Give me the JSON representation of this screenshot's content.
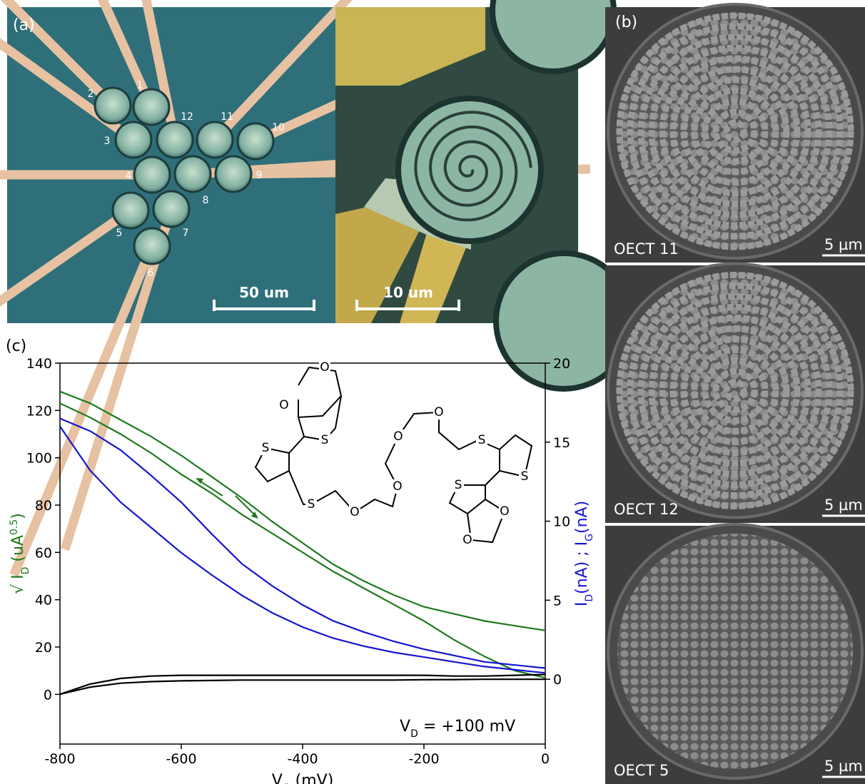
{
  "panel_a": {
    "label": "(a)",
    "devices": [
      "1",
      "2",
      "3",
      "12",
      "11",
      "10",
      "4",
      "8",
      "9",
      "5",
      "7",
      "6"
    ],
    "scale_bars": [
      "50 um",
      "10 um"
    ]
  },
  "panel_b": {
    "label": "(b)",
    "images": [
      {
        "caption": "OECT 11",
        "scale": "5 µm"
      },
      {
        "caption": "OECT 12",
        "scale": "5 µm"
      },
      {
        "caption": "OECT 5",
        "scale": "5 µm"
      }
    ]
  },
  "panel_c": {
    "label": "(c)",
    "molecule_atoms": [
      "O",
      "O",
      "S",
      "S",
      "S",
      "O",
      "O",
      "O",
      "O",
      "S",
      "S",
      "S",
      "O",
      "O"
    ]
  },
  "chart_data": {
    "type": "line",
    "x": [
      -800,
      -750,
      -700,
      -650,
      -600,
      -550,
      -500,
      -450,
      -400,
      -350,
      -300,
      -250,
      -200,
      -150,
      -100,
      -50,
      0
    ],
    "xlim": [
      -800,
      0
    ],
    "xticks": [
      -800,
      -600,
      -400,
      -200,
      0
    ],
    "ylim": [
      -21,
      140
    ],
    "yticks": [
      0,
      20,
      40,
      60,
      80,
      100,
      120,
      140
    ],
    "y2lim": [
      -4.1,
      20
    ],
    "y2ticks": [
      0,
      5,
      10,
      15,
      20
    ],
    "x_label": [
      "V",
      "G",
      " (mV)"
    ],
    "y_label": [
      "√ I",
      "D",
      " (uA",
      "0.5",
      ")"
    ],
    "y2_label": [
      "I",
      "D",
      "(nA) ; I",
      "G",
      "(nA)"
    ],
    "annotation": [
      "V",
      "D",
      " = +100 mV"
    ],
    "series": [
      {
        "color": "#1e7a1e",
        "values": [
          128,
          123,
          116,
          109,
          101,
          92,
          83,
          73,
          64,
          55,
          48,
          42,
          37,
          34,
          31,
          29,
          27
        ]
      },
      {
        "color": "#1e7a1e",
        "values": [
          123,
          117,
          110,
          102,
          93,
          85,
          76,
          68,
          60,
          52,
          45,
          38,
          31,
          23,
          16,
          10,
          7
        ]
      },
      {
        "color": "#1515d0",
        "axis": "y2",
        "values": [
          16.5,
          15.7,
          14.5,
          12.9,
          11.2,
          9.2,
          7.3,
          5.9,
          4.7,
          3.7,
          3.0,
          2.4,
          1.9,
          1.5,
          1.1,
          0.9,
          0.7
        ]
      },
      {
        "color": "#1515d0",
        "axis": "y2",
        "values": [
          16.0,
          13.2,
          11.2,
          9.6,
          8.0,
          6.6,
          5.3,
          4.2,
          3.3,
          2.6,
          2.1,
          1.7,
          1.4,
          1.1,
          0.8,
          0.6,
          0.4
        ]
      },
      {
        "color": "#000000",
        "axis": "y2",
        "values": [
          -0.95,
          -0.3,
          0.05,
          0.2,
          0.25,
          0.25,
          0.25,
          0.25,
          0.25,
          0.25,
          0.25,
          0.25,
          0.25,
          0.2,
          0.2,
          0.25,
          0.3
        ]
      },
      {
        "color": "#000000",
        "axis": "y2",
        "values": [
          -0.95,
          -0.5,
          -0.25,
          -0.15,
          -0.1,
          -0.08,
          -0.05,
          -0.05,
          -0.05,
          -0.05,
          -0.05,
          -0.05,
          -0.03,
          -0.02,
          0,
          0,
          0
        ]
      }
    ]
  }
}
